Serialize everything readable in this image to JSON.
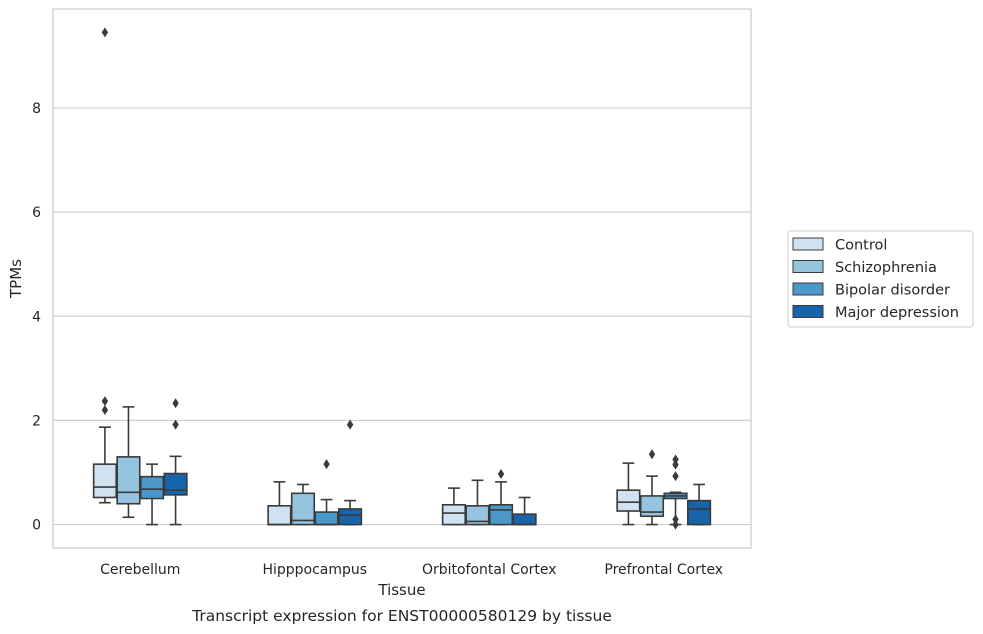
{
  "chart_data": {
    "type": "boxplot",
    "caption": "Transcript expression for ENST00000580129 by tissue",
    "xlabel": "Tissue",
    "ylabel": "TPMs",
    "ylim": [
      -0.45,
      9.9
    ],
    "yticks": [
      0,
      2,
      4,
      6,
      8
    ],
    "grid": true,
    "legend_position": "right",
    "categories": [
      "Cerebellum",
      "Hipppocampus",
      "Orbitofontal Cortex",
      "Prefrontal Cortex"
    ],
    "series": [
      {
        "name": "Control",
        "color": "#d0e1f2",
        "boxes": [
          {
            "whislo": 0.42,
            "q1": 0.52,
            "med": 0.72,
            "q3": 1.16,
            "whishi": 1.87,
            "fliers": [
              2.2,
              2.37
            ]
          },
          {
            "whislo": 0.0,
            "q1": 0.0,
            "med": 0.0,
            "q3": 0.36,
            "whishi": 0.82,
            "fliers": []
          },
          {
            "whislo": 0.0,
            "q1": 0.0,
            "med": 0.22,
            "q3": 0.38,
            "whishi": 0.7,
            "fliers": []
          },
          {
            "whislo": 0.0,
            "q1": 0.26,
            "med": 0.43,
            "q3": 0.66,
            "whishi": 1.18,
            "fliers": []
          }
        ]
      },
      {
        "name": "Schizophrenia",
        "color": "#94c4df",
        "boxes": [
          {
            "whislo": 0.14,
            "q1": 0.4,
            "med": 0.62,
            "q3": 1.3,
            "whishi": 2.26,
            "fliers": []
          },
          {
            "whislo": 0.0,
            "q1": 0.0,
            "med": 0.08,
            "q3": 0.6,
            "whishi": 0.77,
            "fliers": []
          },
          {
            "whislo": 0.0,
            "q1": 0.0,
            "med": 0.06,
            "q3": 0.36,
            "whishi": 0.85,
            "fliers": []
          },
          {
            "whislo": 0.0,
            "q1": 0.16,
            "med": 0.24,
            "q3": 0.55,
            "whishi": 0.93,
            "fliers": [
              1.35
            ]
          }
        ]
      },
      {
        "name": "Bipolar disorder",
        "color": "#4a98c9",
        "boxes": [
          {
            "whislo": 0.0,
            "q1": 0.5,
            "med": 0.68,
            "q3": 0.92,
            "whishi": 1.16,
            "fliers": []
          },
          {
            "whislo": 0.0,
            "q1": 0.0,
            "med": 0.0,
            "q3": 0.24,
            "whishi": 0.48,
            "fliers": [
              1.16
            ]
          },
          {
            "whislo": 0.0,
            "q1": 0.0,
            "med": 0.28,
            "q3": 0.38,
            "whishi": 0.82,
            "fliers": [
              0.97
            ]
          },
          {
            "whislo": 0.0,
            "q1": 0.5,
            "med": 0.55,
            "q3": 0.6,
            "whishi": 0.62,
            "fliers": [
              0.0,
              0.1,
              0.93,
              1.15,
              1.25
            ]
          }
        ]
      },
      {
        "name": "Major depression",
        "color": "#1764ab",
        "boxes": [
          {
            "whislo": 0.0,
            "q1": 0.57,
            "med": 0.66,
            "q3": 0.98,
            "whishi": 1.31,
            "fliers": [
              1.92,
              2.33
            ]
          },
          {
            "whislo": 0.0,
            "q1": 0.0,
            "med": 0.18,
            "q3": 0.3,
            "whishi": 0.46,
            "fliers": [
              1.92
            ]
          },
          {
            "whislo": 0.0,
            "q1": 0.0,
            "med": 0.0,
            "q3": 0.2,
            "whishi": 0.52,
            "fliers": []
          },
          {
            "whislo": 0.0,
            "q1": 0.0,
            "med": 0.3,
            "q3": 0.46,
            "whishi": 0.77,
            "fliers": []
          }
        ]
      }
    ],
    "outliers_extra": [
      {
        "category_index": 0,
        "series_index": 0,
        "value": 9.45
      }
    ]
  }
}
